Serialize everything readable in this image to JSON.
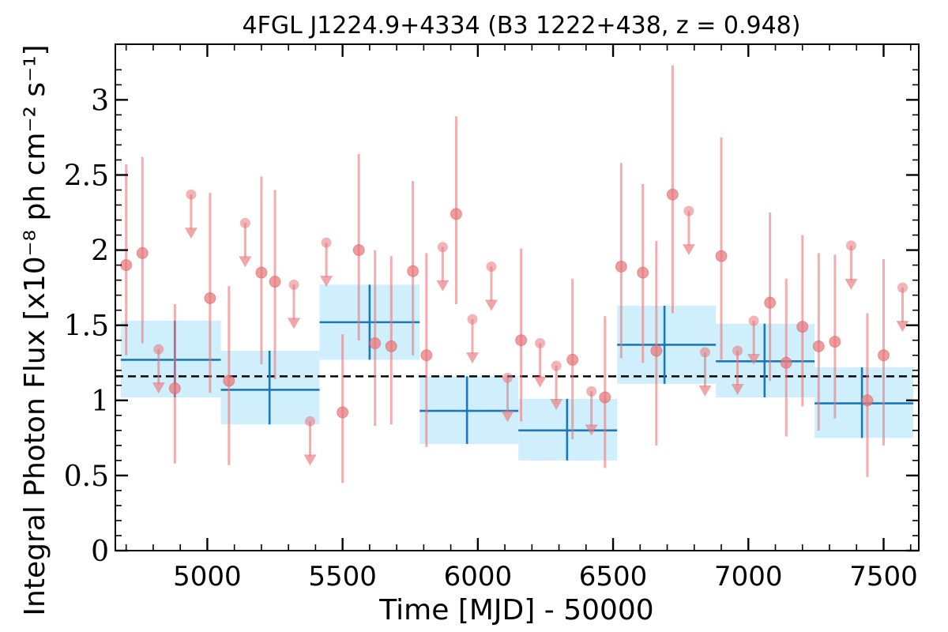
{
  "chart_data": {
    "type": "scatter",
    "title": "4FGL J1224.9+4334 (B3 1222+438, z = 0.948)",
    "xlabel": "Time [MJD] - 50000",
    "ylabel": "Integral Photon Flux [x10⁻⁸ ph cm⁻² s⁻¹]",
    "xlim": [
      4660,
      7630
    ],
    "ylim": [
      0,
      3.37
    ],
    "xticks": [
      5000,
      5500,
      6000,
      6500,
      7000,
      7500
    ],
    "xtick_labels": [
      "5000",
      "5500",
      "6000",
      "6500",
      "7000",
      "7500"
    ],
    "yticks": [
      0,
      0.5,
      1,
      1.5,
      2,
      2.5,
      3
    ],
    "ytick_labels": [
      "0",
      "0.5",
      "1",
      "1.5",
      "2",
      "2.5",
      "3"
    ],
    "mean_flux": 1.16,
    "colors": {
      "points": "#e8777a",
      "bins_line": "#1f77b4",
      "bins_fill": "#cdeefc",
      "mean_line": "#000000"
    },
    "series": [
      {
        "kind": "detections",
        "x": [
          4700,
          4760,
          4880,
          5010,
          5080,
          5200,
          5250,
          5500,
          5560,
          5620,
          5680,
          5760,
          5810,
          5920,
          6160,
          6350,
          6470,
          6530,
          6610,
          6660,
          6720,
          6900,
          7080,
          7140,
          7200,
          7260,
          7320,
          7440,
          7500
        ],
        "y": [
          1.9,
          1.98,
          1.08,
          1.68,
          1.13,
          1.85,
          1.79,
          0.92,
          2.0,
          1.38,
          1.36,
          1.86,
          1.3,
          2.24,
          1.4,
          1.27,
          1.02,
          1.89,
          1.85,
          1.33,
          2.37,
          1.96,
          1.65,
          1.25,
          1.49,
          1.36,
          1.39,
          1.0,
          1.3
        ],
        "y_lo": [
          1.3,
          1.38,
          0.58,
          1.05,
          0.57,
          1.24,
          1.14,
          0.45,
          1.4,
          0.83,
          0.84,
          1.3,
          0.69,
          1.64,
          0.86,
          0.74,
          0.55,
          1.28,
          1.25,
          0.7,
          1.58,
          1.27,
          1.13,
          0.76,
          0.96,
          0.8,
          0.88,
          0.49,
          0.7
        ],
        "y_hi": [
          2.57,
          2.62,
          1.64,
          2.38,
          1.76,
          2.49,
          2.4,
          1.44,
          2.64,
          2.0,
          1.96,
          2.46,
          1.98,
          2.89,
          2.01,
          1.81,
          1.56,
          2.58,
          2.44,
          2.06,
          3.23,
          2.75,
          2.25,
          1.81,
          2.1,
          1.98,
          1.97,
          1.58,
          1.94
        ]
      },
      {
        "kind": "upper_limits",
        "x": [
          4820,
          4940,
          5140,
          5320,
          5380,
          5440,
          5870,
          5980,
          6050,
          6110,
          6230,
          6290,
          6420,
          6780,
          6840,
          6960,
          7020,
          7380,
          7570
        ],
        "y": [
          1.34,
          2.37,
          2.18,
          1.77,
          0.86,
          2.05,
          2.02,
          1.54,
          1.89,
          1.15,
          1.38,
          1.23,
          1.06,
          2.26,
          1.32,
          1.33,
          1.53,
          2.03,
          1.75
        ]
      },
      {
        "kind": "bins",
        "x_start": [
          4680,
          5050,
          5415,
          5785,
          6150,
          6515,
          6880,
          7245
        ],
        "x_end": [
          5050,
          5415,
          5785,
          6150,
          6515,
          6880,
          7245,
          7610
        ],
        "x_center": [
          4880,
          5230,
          5600,
          5960,
          6330,
          6690,
          7060,
          7420
        ],
        "y": [
          1.27,
          1.07,
          1.52,
          0.93,
          0.8,
          1.37,
          1.26,
          0.98
        ],
        "y_lo": [
          1.02,
          0.84,
          1.27,
          0.71,
          0.6,
          1.11,
          1.02,
          0.75
        ],
        "y_hi": [
          1.53,
          1.33,
          1.77,
          1.16,
          1.01,
          1.63,
          1.51,
          1.22
        ]
      }
    ]
  }
}
